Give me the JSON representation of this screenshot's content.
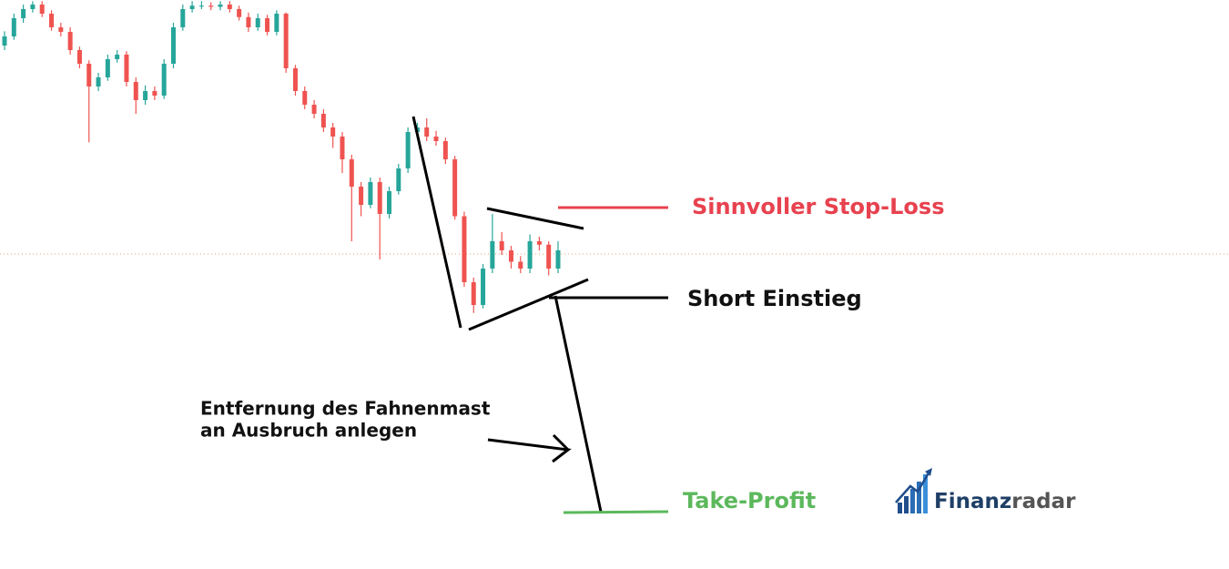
{
  "chart_data": {
    "type": "candlestick",
    "ylim": [
      0,
      100
    ],
    "up_color": "#26a69a",
    "down_color": "#ef5350",
    "open": [
      92.0,
      93.6,
      96.8,
      98.4,
      99.2,
      97.6,
      95.2,
      94.4,
      91.2,
      88.8,
      84.8,
      86.4,
      89.6,
      90.4,
      85.6,
      82.4,
      84,
      83.2,
      88.8,
      95.2,
      98.4,
      99,
      99,
      98.8,
      99.2,
      98.4,
      97,
      95.2,
      96.8,
      94.4,
      97.6,
      88,
      84,
      81.6,
      80,
      77.6,
      76,
      72,
      67.2,
      64,
      68,
      62.4,
      66.4,
      70.4,
      76.8,
      77.6,
      76,
      75.2,
      72,
      62,
      50.4,
      46.4,
      52.8,
      57.6,
      56,
      54,
      52.8,
      57.6,
      57,
      52.8
    ],
    "high": [
      94.5,
      97.6,
      99.2,
      99.8,
      99.8,
      98.2,
      96,
      95.2,
      91.8,
      89.4,
      87.2,
      90.4,
      91.2,
      91,
      86.4,
      85,
      84.8,
      89.6,
      96,
      99.2,
      99.8,
      99.8,
      99.6,
      99.8,
      99.8,
      99,
      97.8,
      97.6,
      97.4,
      98.2,
      97.8,
      88.6,
      84.8,
      82.4,
      80.8,
      78.4,
      76.8,
      72.8,
      68,
      68.8,
      68.8,
      67.2,
      71.2,
      77.6,
      78.4,
      79.2,
      77,
      75.8,
      72.6,
      62.8,
      51.2,
      53.6,
      62.4,
      59.2,
      56.8,
      55,
      58.8,
      58.4,
      57.6,
      57.6
    ],
    "low": [
      91.2,
      93,
      96,
      97.8,
      97,
      94.6,
      93.6,
      90.4,
      88,
      75,
      84,
      85.8,
      89,
      84.8,
      80,
      81.6,
      82.4,
      82.6,
      88,
      94.6,
      97.8,
      98.4,
      98.2,
      98.2,
      97.8,
      96.4,
      94.4,
      94.6,
      93.8,
      93.8,
      87.2,
      83.2,
      80.8,
      79.2,
      76.8,
      74,
      69.6,
      57.6,
      62,
      63.4,
      54.4,
      61.6,
      65.8,
      69.6,
      76,
      75.2,
      74.4,
      71.2,
      61.4,
      49.6,
      45,
      45.8,
      52,
      55.2,
      52.8,
      52,
      52,
      56,
      51.6,
      52
    ],
    "close": [
      93.6,
      96.8,
      98.4,
      99.2,
      97.6,
      95.2,
      94.4,
      91.2,
      88.8,
      84.8,
      86.4,
      89.6,
      90.4,
      85.6,
      82.4,
      84,
      83.2,
      88.8,
      95.2,
      98.4,
      99,
      99,
      98.8,
      99.2,
      98.4,
      97,
      95.2,
      96.8,
      94.4,
      97.6,
      88,
      84,
      81.6,
      80,
      77.6,
      76,
      72,
      67.2,
      64,
      68,
      62.4,
      66.4,
      70.4,
      76.8,
      77.6,
      76,
      75.2,
      72,
      62,
      50.4,
      46.4,
      52.8,
      57.6,
      56,
      54,
      52.8,
      57.6,
      57,
      52.8,
      56
    ],
    "annotations": {
      "stop_loss": "Sinnvoller Stop-Loss",
      "entry": "Short Einstieg",
      "distance_line1": "Entfernung des Fahnenmast",
      "distance_line2": "an Ausbruch anlegen",
      "take_profit": "Take-Profit"
    },
    "logo": {
      "bold": "Finanz",
      "light": "radar"
    }
  }
}
